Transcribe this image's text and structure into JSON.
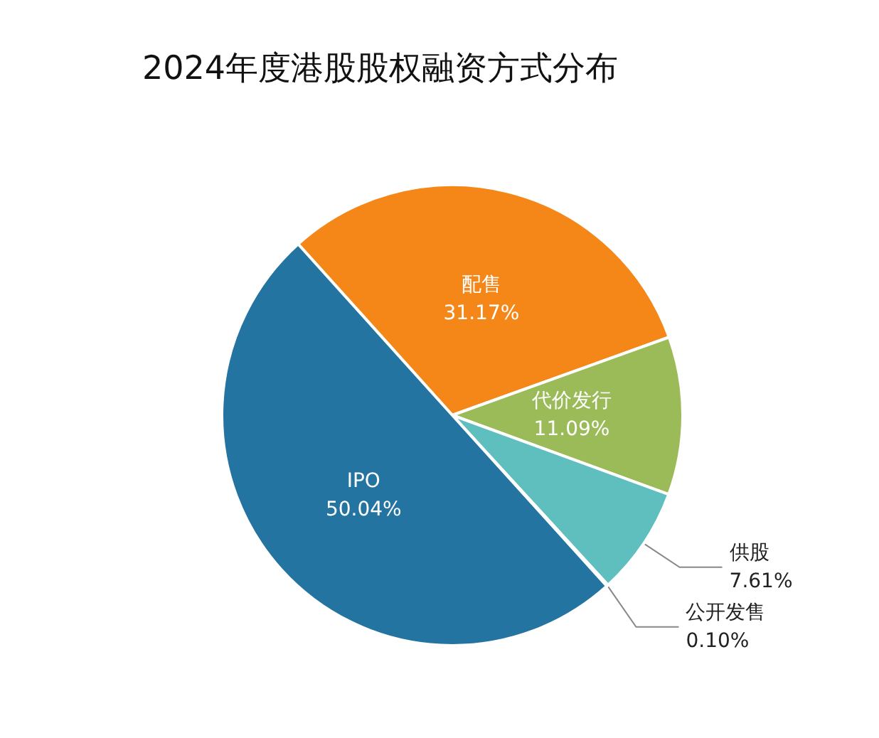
{
  "chart_data": {
    "type": "pie",
    "title": "2024年度港股股权融资方式分布",
    "categories": [
      "配售",
      "代价发行",
      "供股",
      "公开发售",
      "IPO"
    ],
    "values": [
      31.17,
      11.09,
      7.61,
      0.1,
      50.04
    ],
    "value_labels": [
      "31.17%",
      "11.09%",
      "7.61%",
      "0.10%",
      "50.04%"
    ],
    "colors": [
      "#f58718",
      "#9bbb59",
      "#5fbfbf",
      "#4f81bd",
      "#2474a1"
    ]
  }
}
